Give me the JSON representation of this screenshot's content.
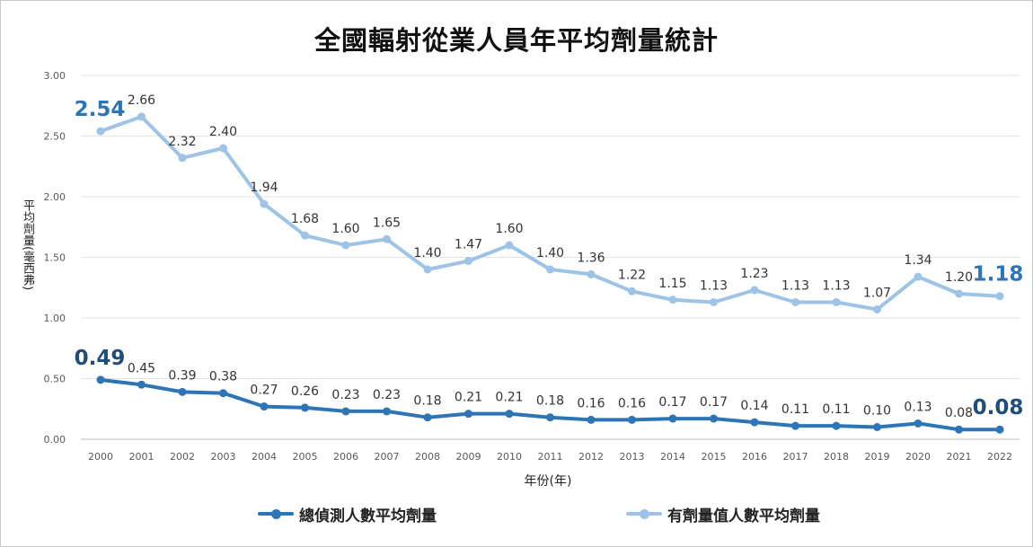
{
  "chart_data": {
    "type": "line",
    "title": "全國輻射從業人員年平均劑量統計",
    "xlabel": "年份(年)",
    "ylabel": "平均劑量(毫西弗)",
    "ylim": [
      0,
      3
    ],
    "yticks": [
      "0.00",
      "0.50",
      "1.00",
      "1.50",
      "2.00",
      "2.50",
      "3.00"
    ],
    "grid": true,
    "legend_position": "bottom",
    "x": [
      "2000",
      "2001",
      "2002",
      "2003",
      "2004",
      "2005",
      "2006",
      "2007",
      "2008",
      "2009",
      "2010",
      "2011",
      "2012",
      "2013",
      "2014",
      "2015",
      "2016",
      "2017",
      "2018",
      "2019",
      "2020",
      "2021",
      "2022"
    ],
    "series": [
      {
        "name": "總偵測人數平均劑量",
        "color": "#2e75b6",
        "values": [
          0.49,
          0.45,
          0.39,
          0.38,
          0.27,
          0.26,
          0.23,
          0.23,
          0.18,
          0.21,
          0.21,
          0.18,
          0.16,
          0.16,
          0.17,
          0.17,
          0.14,
          0.11,
          0.11,
          0.1,
          0.13,
          0.08,
          0.08
        ],
        "labels": [
          "0.49",
          "0.45",
          "0.39",
          "0.38",
          "0.27",
          "0.26",
          "0.23",
          "0.23",
          "0.18",
          "0.21",
          "0.21",
          "0.18",
          "0.16",
          "0.16",
          "0.17",
          "0.17",
          "0.14",
          "0.11",
          "0.11",
          "0.10",
          "0.13",
          "0.08",
          "0.08"
        ]
      },
      {
        "name": "有劑量值人數平均劑量",
        "color": "#9dc3e6",
        "values": [
          2.54,
          2.66,
          2.32,
          2.4,
          1.94,
          1.68,
          1.6,
          1.65,
          1.4,
          1.47,
          1.6,
          1.4,
          1.36,
          1.22,
          1.15,
          1.13,
          1.23,
          1.13,
          1.13,
          1.07,
          1.34,
          1.2,
          1.18
        ],
        "labels": [
          "2.54",
          "2.66",
          "2.32",
          "2.40",
          "1.94",
          "1.68",
          "1.60",
          "1.65",
          "1.40",
          "1.47",
          "1.60",
          "1.40",
          "1.36",
          "1.22",
          "1.15",
          "1.13",
          "1.23",
          "1.13",
          "1.13",
          "1.07",
          "1.34",
          "1.20",
          "1.18"
        ]
      }
    ]
  }
}
